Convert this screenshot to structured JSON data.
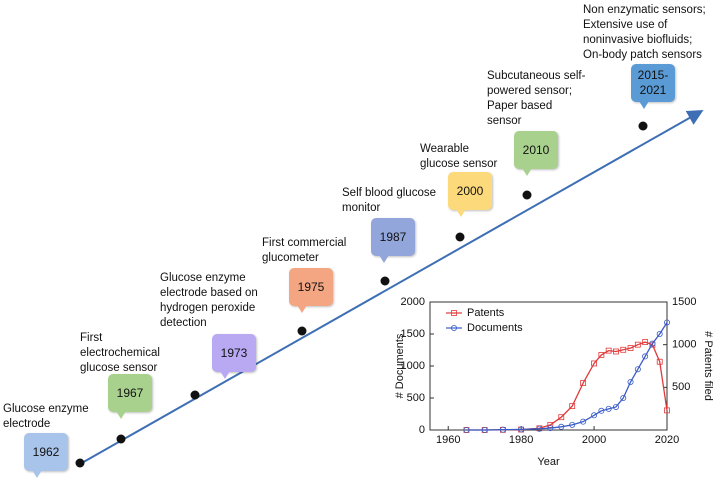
{
  "timeline": {
    "milestones": [
      {
        "year": "1962",
        "color": "#a9c4ea",
        "label": [
          "Glucose enzyme",
          "electrode"
        ]
      },
      {
        "year": "1967",
        "color": "#a9d18e",
        "label": [
          "First",
          "electrochemical",
          "glucose sensor"
        ]
      },
      {
        "year": "1973",
        "color": "#b8a9f2",
        "label": [
          "Glucose enzyme",
          "electrode based on",
          "hydrogen peroxide",
          "detection"
        ]
      },
      {
        "year": "1975",
        "color": "#f4a582",
        "label": [
          "First commercial",
          "glucometer"
        ]
      },
      {
        "year": "1987",
        "color": "#93a6dc",
        "label": [
          "Self blood glucose",
          "monitor"
        ]
      },
      {
        "year": "2000",
        "color": "#fcd97a",
        "label": [
          "Wearable",
          "glucose sensor"
        ]
      },
      {
        "year": "2010",
        "color": "#a9d18e",
        "label": [
          "Subcutaneous self-",
          "powered sensor;",
          "Paper based",
          "sensor"
        ]
      },
      {
        "year": "2015-2021",
        "color": "#5b9bd5",
        "label": [
          "Non enzymatic sensors;",
          "Extensive use of",
          "noninvasive biofluids;",
          "On-body patch sensors"
        ]
      }
    ]
  },
  "chart_data": {
    "type": "line",
    "x_label": "Year",
    "y_label": "# Documents",
    "y2_label": "# Patents filed",
    "x": [
      1965,
      1970,
      1975,
      1980,
      1985,
      1988,
      1991,
      1994,
      1997,
      2000,
      2002,
      2004,
      2006,
      2008,
      2010,
      2012,
      2014,
      2016,
      2018,
      2020
    ],
    "series": [
      {
        "name": "Patents",
        "color": "#e03a3a",
        "axis": "y2",
        "marker": "square",
        "values": [
          0,
          0,
          2,
          5,
          20,
          60,
          150,
          280,
          550,
          780,
          880,
          930,
          920,
          940,
          960,
          1000,
          1030,
          1000,
          800,
          230
        ]
      },
      {
        "name": "Documents",
        "color": "#3a5cc8",
        "marker": "circle",
        "values": [
          0,
          0,
          5,
          10,
          20,
          30,
          50,
          80,
          130,
          230,
          300,
          330,
          360,
          500,
          750,
          950,
          1150,
          1350,
          1500,
          1680
        ]
      }
    ],
    "xlim": [
      1955,
      2020
    ],
    "xticks": [
      1960,
      1980,
      2000,
      2020
    ],
    "ylim": [
      0,
      2000
    ],
    "yticks": [
      0,
      500,
      1000,
      1500,
      2000
    ],
    "y2lim": [
      0,
      1500
    ],
    "y2ticks": [
      500,
      1000,
      1500
    ],
    "legend": "upper-left"
  }
}
